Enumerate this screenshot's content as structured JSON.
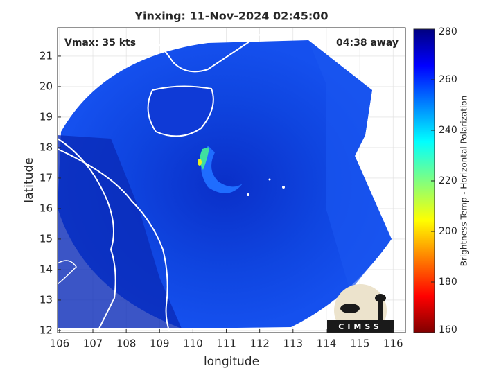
{
  "chart_data": {
    "type": "map",
    "title": "Yinxing: 11-Nov-2024 02:45:00",
    "annotations": {
      "left": "Vmax: 35 kts",
      "right": "04:38 away"
    },
    "xlabel": "longitude",
    "ylabel": "latitude",
    "xlim": [
      105.94,
      116.37
    ],
    "ylim": [
      11.93,
      21.93
    ],
    "xticks": [
      106,
      107,
      108,
      109,
      110,
      111,
      112,
      113,
      114,
      115,
      116
    ],
    "yticks": [
      12,
      13,
      14,
      15,
      16,
      17,
      18,
      19,
      20,
      21
    ],
    "grid": true,
    "colorbar": {
      "label": "Brightness Temp - Horizontal Polarization",
      "clim": [
        160,
        280
      ],
      "ticks": [
        160,
        180,
        200,
        220,
        240,
        260,
        280
      ],
      "colormap": "jet"
    },
    "logo": "CIMSS"
  }
}
